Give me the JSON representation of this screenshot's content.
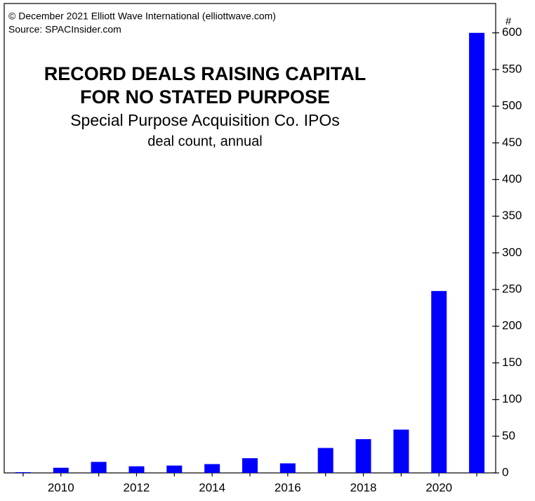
{
  "chart_data": {
    "type": "bar",
    "credits": [
      "© December 2021 Elliott Wave International (elliottwave.com)",
      "Source: SPACInsider.com"
    ],
    "title": [
      "RECORD DEALS RAISING CAPITAL",
      "FOR NO STATED PURPOSE"
    ],
    "subtitle": [
      "Special Purpose Acquisition Co. IPOs",
      "deal count, annual"
    ],
    "y_axis_label": "#",
    "categories": [
      null,
      "2010",
      null,
      "2012",
      null,
      "2014",
      null,
      "2016",
      null,
      "2018",
      null,
      "2020",
      null
    ],
    "values": [
      1,
      7,
      15,
      9,
      10,
      12,
      20,
      13,
      34,
      46,
      59,
      248,
      600
    ],
    "color": "#0000ff",
    "ylim": [
      0,
      640
    ],
    "yticks": [
      0,
      50,
      100,
      150,
      200,
      250,
      300,
      350,
      400,
      450,
      500,
      550,
      600
    ],
    "grid": false
  }
}
